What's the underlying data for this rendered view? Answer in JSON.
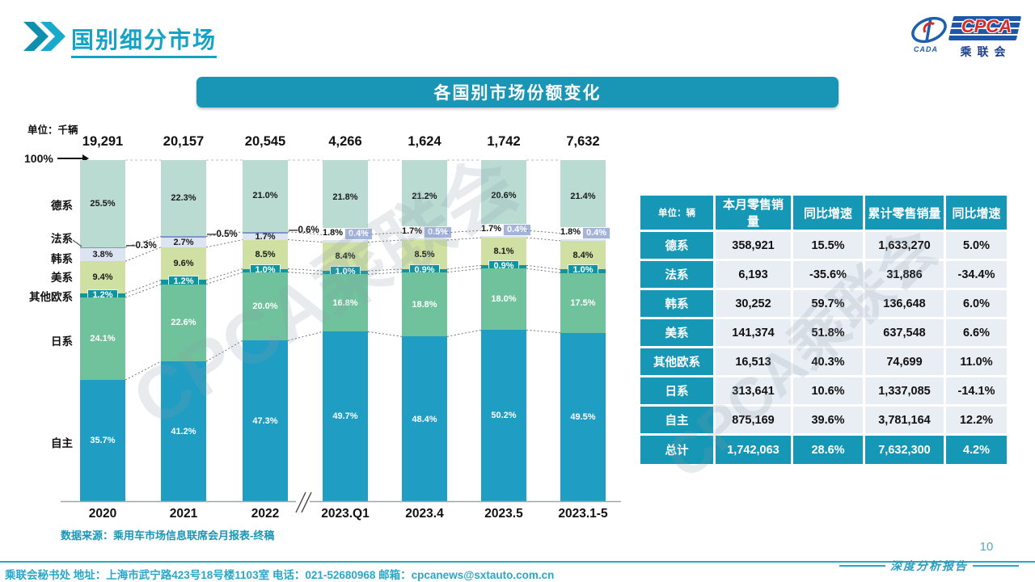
{
  "header": {
    "title": "国别细分市场",
    "logo": {
      "emblem_sub": "CADA",
      "acronym": "CPCA",
      "cn_name": "乘联会"
    }
  },
  "banner": {
    "title": "各国别市场份额变化"
  },
  "chart": {
    "unit_label": "单位：千辆",
    "hundred_label": "100%",
    "source": "数据来源：乘用车市场信息联席会月报表-终稿"
  },
  "chart_data": {
    "type": "bar",
    "stacked": true,
    "ylim": [
      0,
      100
    ],
    "unit": "percent share of total",
    "categories": [
      "2020",
      "2021",
      "2022",
      "2023.Q1",
      "2023.4",
      "2023.5",
      "2023.1-5"
    ],
    "totals_display": [
      "19,291",
      "20,157",
      "20,545",
      "4,266",
      "1,624",
      "1,742",
      "7,632"
    ],
    "series": [
      {
        "name": "德系",
        "key": "german",
        "color": "#b9dbd2",
        "label_style": "dark",
        "values": [
          25.5,
          22.3,
          21.0,
          21.8,
          21.2,
          20.6,
          21.4
        ]
      },
      {
        "name": "法系",
        "key": "french",
        "color": "#8095c6",
        "label_style": "callout",
        "values": [
          0.3,
          0.5,
          0.6,
          0.4,
          0.5,
          0.4,
          0.4
        ]
      },
      {
        "name": "韩系",
        "key": "korean",
        "color": "#dde4f1",
        "label_style": "dark",
        "values": [
          3.8,
          2.7,
          1.7,
          1.8,
          1.7,
          1.7,
          1.8
        ]
      },
      {
        "name": "美系",
        "key": "american",
        "color": "#cfe0a2",
        "label_style": "dark",
        "values": [
          9.4,
          9.6,
          8.5,
          8.4,
          8.5,
          8.1,
          8.4
        ]
      },
      {
        "name": "其他欧系",
        "key": "other-european",
        "color": "#0f959e",
        "label_style": "badge",
        "values": [
          1.2,
          1.2,
          1.0,
          1.0,
          0.9,
          0.9,
          1.0
        ]
      },
      {
        "name": "日系",
        "key": "japanese",
        "color": "#6fc29c",
        "label_style": "light",
        "values": [
          24.1,
          22.6,
          20.0,
          16.8,
          18.8,
          18.0,
          17.5
        ]
      },
      {
        "name": "自主",
        "key": "domestic",
        "color": "#1f9dc2",
        "label_style": "light",
        "values": [
          35.7,
          41.2,
          47.3,
          49.7,
          48.4,
          50.2,
          49.5
        ]
      }
    ]
  },
  "table": {
    "headers": [
      "单位：辆",
      "本月零售销量",
      "同比增速",
      "累计零售销量",
      "同比增速"
    ],
    "rows": [
      {
        "key": "german",
        "cells": [
          "德系",
          "358,921",
          "15.5%",
          "1,633,270",
          "5.0%"
        ]
      },
      {
        "key": "french",
        "cells": [
          "法系",
          "6,193",
          "-35.6%",
          "31,886",
          "-34.4%"
        ]
      },
      {
        "key": "korean",
        "cells": [
          "韩系",
          "30,252",
          "59.7%",
          "136,648",
          "6.0%"
        ]
      },
      {
        "key": "american",
        "cells": [
          "美系",
          "141,374",
          "51.8%",
          "637,548",
          "6.6%"
        ]
      },
      {
        "key": "other-european",
        "cells": [
          "其他欧系",
          "16,513",
          "40.3%",
          "74,699",
          "11.0%"
        ]
      },
      {
        "key": "japanese",
        "cells": [
          "日系",
          "313,641",
          "10.6%",
          "1,337,085",
          "-14.1%"
        ]
      },
      {
        "key": "domestic",
        "cells": [
          "自主",
          "875,169",
          "39.6%",
          "3,781,164",
          "12.2%"
        ]
      }
    ],
    "total_row": {
      "key": "total",
      "cells": [
        "总计",
        "1,742,063",
        "28.6%",
        "7,632,300",
        "4.2%"
      ]
    }
  },
  "footer": {
    "contact": "乘联会秘书处  地址：上海市武宁路423号18号楼1103室 电话：021-52680968  邮箱：cpcanews@sxtauto.com.cn",
    "page_number": "10",
    "report_label": "深度分析报告"
  },
  "watermark": "CPCA乘联会",
  "colors": {
    "accent_teal": "#1996b6",
    "title_teal": "#14a3c4",
    "footer_teal": "#2aa7c8",
    "badge_lavender": "#a3b4da"
  }
}
